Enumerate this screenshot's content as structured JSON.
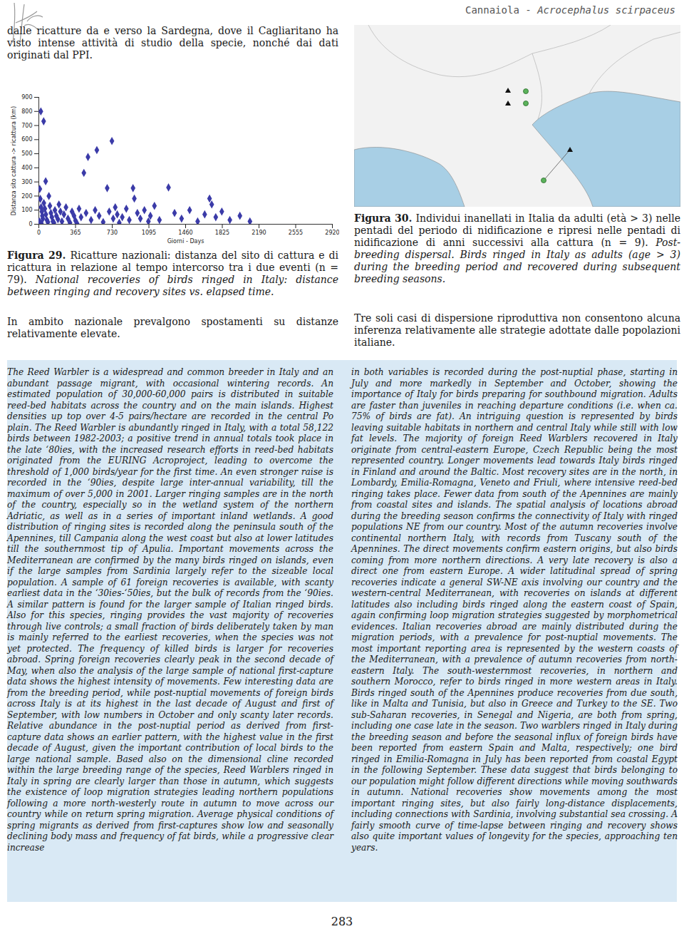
{
  "header": {
    "text": "Cannaiola - ",
    "species": "Acrocephalus scirpaceus"
  },
  "intro_text": "dalle ricatture da e verso la Sardegna, dove il Cagliaritano ha visto intense attività di studio della specie, nonché dai dati originati dal PPI.",
  "chart_data": {
    "type": "scatter",
    "x_label": "Giorni - Days",
    "y_label": "Distanza sito cattura -> ricattura (km)",
    "x": [
      20,
      48,
      68,
      10,
      15,
      22,
      30,
      35,
      40,
      5,
      12,
      25,
      50,
      60,
      70,
      80,
      90,
      100,
      110,
      120,
      130,
      140,
      150,
      160,
      175,
      190,
      200,
      215,
      230,
      250,
      270,
      290,
      310,
      330,
      350,
      365,
      380,
      400,
      420,
      448,
      489,
      577,
      470,
      520,
      560,
      600,
      640,
      680,
      700,
      727,
      740,
      760,
      780,
      800,
      830,
      870,
      900,
      937,
      950,
      980,
      1010,
      1050,
      1090,
      1110,
      1150,
      1200,
      1290,
      1350,
      1420,
      1500,
      1580,
      1650,
      1698,
      1720,
      1760,
      1820,
      1900,
      2000,
      2100
    ],
    "values": [
      800,
      730,
      305,
      250,
      180,
      120,
      90,
      60,
      40,
      20,
      10,
      5,
      150,
      110,
      70,
      30,
      15,
      200,
      130,
      80,
      50,
      20,
      10,
      100,
      60,
      35,
      140,
      90,
      20,
      70,
      120,
      40,
      10,
      90,
      60,
      25,
      5,
      110,
      50,
      364,
      477,
      526,
      80,
      30,
      100,
      60,
      15,
      256,
      90,
      590,
      40,
      120,
      70,
      10,
      50,
      110,
      30,
      256,
      182,
      80,
      40,
      100,
      20,
      60,
      130,
      30,
      261,
      80,
      40,
      100,
      20,
      70,
      182,
      140,
      50,
      90,
      30,
      60,
      20
    ],
    "xlim": [
      0,
      2920
    ],
    "ylim": [
      0,
      900
    ],
    "xticks": [
      0,
      365,
      730,
      1095,
      1460,
      1825,
      2190,
      2555,
      2920
    ],
    "yticks": [
      0,
      100,
      200,
      300,
      400,
      500,
      600,
      700,
      800,
      900
    ],
    "color": "#3b3ba8",
    "marker": "diamond",
    "grid": false
  },
  "figure29": {
    "label": "Figura 29.",
    "caption_it": "Ricatture nazionali: distanza del sito di cattura e di ricattura in relazione al tempo intercorso tra i due eventi (n = 79).",
    "caption_en": "National recoveries of birds ringed in Italy: distance between ringing and recovery sites vs. elapsed time."
  },
  "figure29_comment": "In ambito nazionale prevalgono spostamenti su distanze relativamente elevate.",
  "figure30": {
    "label": "Figura 30.",
    "caption_it": "Individui inanellati in Italia da adulti (età > 3) nelle pentadi del periodo di nidificazione e ripresi nelle pentadi di nidificazione di anni successivi alla cattura (n = 9).",
    "caption_en": "Post-breeding dispersal. Birds ringed in Italy as adults (age > 3) during the breeding period and recovered during subsequent breeding seasons."
  },
  "figure30_comment": "Tre soli casi di dispersione riproduttiva non consentono alcuna inferenza relativamente alle strategie adottate dalle popolazioni italiane.",
  "summary": {
    "left": "The Reed Warbler is a widespread and common breeder in Italy and an abundant passage migrant, with occasional wintering records. An estimated population of 30,000-60,000 pairs is distributed in suitable reed-bed habitats across the country and on the main islands. Highest densities up top over 4-5 pairs/hectare are recorded in the central Po plain. The Reed Warbler is abundantly ringed in Italy, with a total 58,122 birds between 1982-2003; a positive trend in annual totals took place in the late ‘80ies, with the increased research efforts in reed-bed habitats originated from the EURING Acroproject, leading to overcome the threshold of 1,000 birds/year for the first time. An even stronger raise is recorded in the ‘90ies, despite large inter-annual variability, till the maximum of over 5,000 in 2001. Larger ringing samples are in the north of the country, especially so in the wetland system of the northern Adriatic, as well as in a series of important inland wetlands. A good distribution of ringing sites is recorded along the peninsula south of the Apennines, till Campania along the west coast but also at lower latitudes till the southernmost tip of Apulia. Important movements across the Mediterranean are confirmed by the many birds ringed on islands, even if the large samples from Sardinia largely refer to the sizeable local population. A sample of 61 foreign recoveries is available, with scanty earliest data in the ‘30ies-‘50ies, but the bulk of records from the ‘90ies. A similar pattern is found for the larger sample of Italian ringed birds. Also for this species, ringing provides the vast majority of recoveries through live controls; a small fraction of birds deliberately taken by man is mainly referred to the earliest recoveries, when the species was not yet protected. The frequency of killed birds is larger for recoveries abroad. Spring foreign recoveries clearly peak in the second decade of May, when also the analysis of the large sample of national first-capture data shows the highest intensity of movements. Few interesting data are from the breeding period, while post-nuptial movements of foreign birds across Italy is at its highest in the last decade of August and first of September, with low numbers in October and only scanty later records. Relative abundance in the post-nuptial period as derived from first-capture data shows an earlier pattern, with the highest value in the first decade of August, given the important contribution of local birds to the large national sample. Based also on the dimensional cline recorded within the large breeding range of the species, Reed Warblers ringed in Italy in spring are clearly larger than those in autumn, which suggests the existence of loop migration strategies leading northern populations following a more north-westerly route in autumn to move across our country while on return spring migration. Average physical conditions of spring migrants as derived from first-captures show low and seasonally declining body mass and frequency of fat birds, while a progressive clear increase",
    "right": "in both variables is recorded during the post-nuptial phase, starting in July and more markedly in September and October, showing the importance of Italy for birds preparing for southbound migration. Adults are faster than juveniles in reaching departure conditions (i.e. when ca. 75% of birds are fat). An intriguing question is represented by birds leaving suitable habitats in northern and central Italy while still with low fat levels. The majority of foreign Reed Warblers recovered in Italy originate from central-eastern Europe, Czech Republic being the most represented country. Longer movements lead towards Italy birds ringed in Finland and around the Baltic. Most recovery sites are in the north, in Lombardy, Emilia-Romagna, Veneto and Friuli, where intensive reed-bed ringing takes place. Fewer data from south of the Apennines are mainly from coastal sites and islands. The spatial analysis of locations abroad during the breeding season confirms the connectivity of Italy with ringed populations NE from our country. Most of the autumn recoveries involve continental northern Italy, with records from Tuscany south of the Apennines. The direct movements confirm eastern origins, but also birds coming from more northern directions. A very late recovery is also a direct one from eastern Europe. A wider latitudinal spread of spring recoveries indicate a general SW-NE axis involving our country and the western-central Mediterranean, with recoveries on islands at different latitudes also including birds ringed along the eastern coast of Spain, again confirming loop migration strategies suggested by morphometrical evidences. Italian recoveries abroad are mainly distributed during the migration periods, with a prevalence for post-nuptial movements. The most important reporting area is represented by the western coasts of the Mediterranean, with a prevalence of autumn recoveries from north-eastern Italy. The south-westernmost recoveries, in northern and southern Morocco, refer to birds ringed in more western areas in Italy. Birds ringed south of the Apennines produce recoveries from due south, like in Malta and Tunisia, but also in Greece and Turkey to the SE. Two sub-Saharan recoveries, in Senegal and Nigeria, are both from spring, including one case late in the season. Two warblers ringed in Italy during the breeding season and before the seasonal influx of foreign birds have been reported from eastern Spain and Malta, respectively; one bird ringed in Emilia-Romagna in July has been reported from coastal Egypt in the following September. These data suggest that birds belonging to our population might follow different directions while moving southwards in autumn. National recoveries show movements among the most important ringing sites, but also fairly long-distance displacements, including connections with Sardinia, involving substantial sea crossing. A fairly smooth curve of time-lapse between ringing and recovery shows also quite important values of longevity for the species, approaching ten years."
  },
  "page_number": "283"
}
